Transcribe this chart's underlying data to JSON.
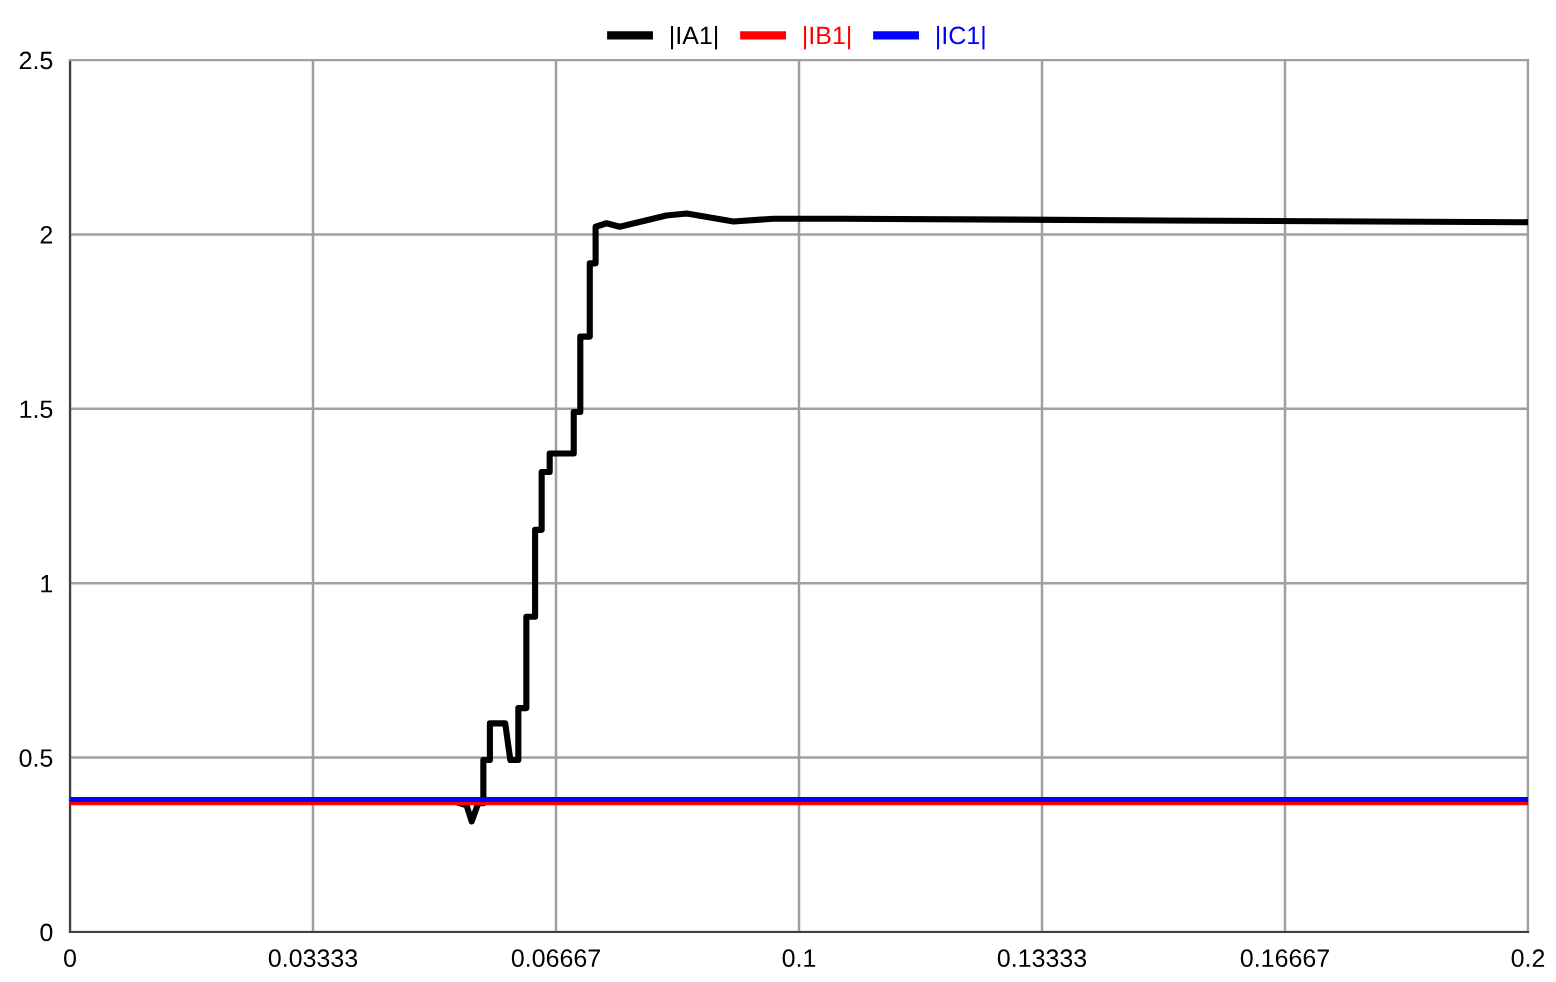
{
  "chart_data": {
    "type": "line",
    "xlim": [
      0,
      0.2
    ],
    "ylim": [
      0,
      2.5
    ],
    "xticks": [
      0,
      {
        "value": 0.033333,
        "label": "0.03333"
      },
      {
        "value": 0.066667,
        "label": "0.06667"
      },
      0.1,
      {
        "value": 0.133333,
        "label": "0.13333"
      },
      {
        "value": 0.166667,
        "label": "0.16667"
      },
      0.2
    ],
    "yticks": [
      0,
      0.5,
      1,
      1.5,
      2,
      2.5
    ],
    "grid": true,
    "legend": "top",
    "marker": "none",
    "line_style": "solid",
    "series": [
      {
        "name": "|IA1|",
        "color": "#000000",
        "x": [
          0.0535,
          0.0544,
          0.0551,
          0.056,
          0.0567,
          0.0567,
          0.0576,
          0.0576,
          0.0597,
          0.0604,
          0.0615,
          0.0615,
          0.0626,
          0.0626,
          0.0638,
          0.0638,
          0.0647,
          0.0647,
          0.0658,
          0.0658,
          0.0691,
          0.0691,
          0.07,
          0.07,
          0.0713,
          0.0713,
          0.0721,
          0.0721,
          0.0736,
          0.0754,
          0.0818,
          0.0846,
          0.091,
          0.0965,
          0.1056,
          0.15,
          0.2
        ],
        "values": [
          0.369,
          0.363,
          0.317,
          0.369,
          0.369,
          0.493,
          0.493,
          0.598,
          0.598,
          0.493,
          0.493,
          0.642,
          0.642,
          0.904,
          0.904,
          1.153,
          1.153,
          1.319,
          1.319,
          1.372,
          1.372,
          1.491,
          1.491,
          1.707,
          1.707,
          1.917,
          1.917,
          2.022,
          2.032,
          2.022,
          2.054,
          2.06,
          2.037,
          2.045,
          2.045,
          2.04,
          2.035
        ]
      },
      {
        "name": "|IB1|",
        "color": "#ff0000",
        "x": [
          0,
          0.2
        ],
        "values": [
          0.372,
          0.372
        ]
      },
      {
        "name": "|IC1|",
        "color": "#0000ff",
        "x": [
          0,
          0.2
        ],
        "values": [
          0.38,
          0.38
        ]
      }
    ]
  }
}
